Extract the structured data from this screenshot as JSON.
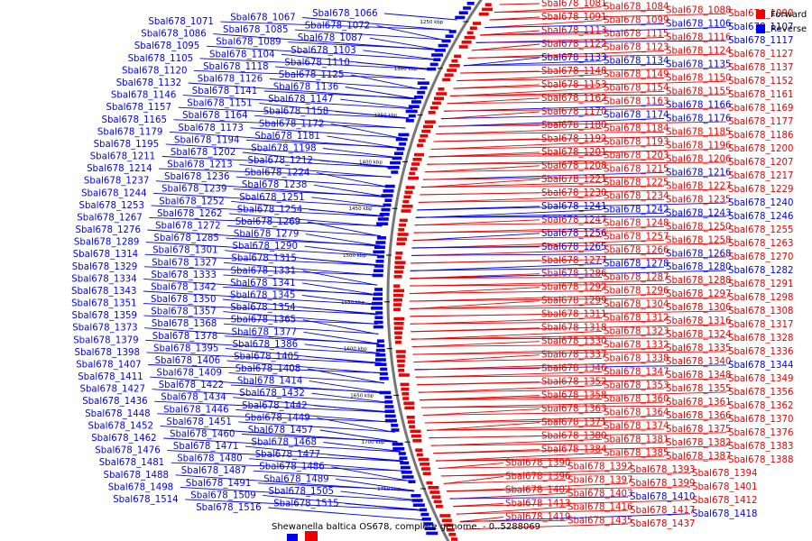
{
  "caption": "Shewanella baltica OS678, complete genome. - 0..5288069",
  "legend": [
    {
      "label": "Forward",
      "color": "#ee0000"
    },
    {
      "label": "Reverse",
      "color": "#0000ee"
    }
  ],
  "colors": {
    "forward": "#ee0000",
    "reverse": "#0000ee",
    "backbone": "#777777"
  },
  "ticks": [
    "1250 kbp",
    "1300 kbp",
    "1350 kbp",
    "1400 kbp",
    "1450 kbp",
    "1500 kbp",
    "1550 kbp",
    "1600 kbp",
    "1650 kbp",
    "1700 kbp",
    "1750 kbp"
  ],
  "reverse_labels": [
    "Sbal678_1066",
    "Sbal678_1067",
    "Sbal678_1071",
    "Sbal678_1072",
    "Sbal678_1085",
    "Sbal678_1086",
    "Sbal678_1087",
    "Sbal678_1089",
    "Sbal678_1095",
    "Sbal678_1103",
    "Sbal678_1104",
    "Sbal678_1105",
    "Sbal678_1110",
    "Sbal678_1118",
    "Sbal678_1120",
    "Sbal678_1125",
    "Sbal678_1126",
    "Sbal678_1132",
    "Sbal678_1136",
    "Sbal678_1141",
    "Sbal678_1146",
    "Sbal678_1147",
    "Sbal678_1151",
    "Sbal678_1157",
    "Sbal678_1158",
    "Sbal678_1164",
    "Sbal678_1165",
    "Sbal678_1172",
    "Sbal678_1173",
    "Sbal678_1179",
    "Sbal678_1181",
    "Sbal678_1194",
    "Sbal678_1195",
    "Sbal678_1198",
    "Sbal678_1202",
    "Sbal678_1211",
    "Sbal678_1212",
    "Sbal678_1213",
    "Sbal678_1214",
    "Sbal678_1224",
    "Sbal678_1236",
    "Sbal678_1237",
    "Sbal678_1238",
    "Sbal678_1239",
    "Sbal678_1244",
    "Sbal678_1251",
    "Sbal678_1252",
    "Sbal678_1253",
    "Sbal678_1254",
    "Sbal678_1262",
    "Sbal678_1267",
    "Sbal678_1269",
    "Sbal678_1272",
    "Sbal678_1276",
    "Sbal678_1279",
    "Sbal678_1285",
    "Sbal678_1289",
    "Sbal678_1290",
    "Sbal678_1301",
    "Sbal678_1314",
    "Sbal678_1315",
    "Sbal678_1327",
    "Sbal678_1329",
    "Sbal678_1331",
    "Sbal678_1333",
    "Sbal678_1334",
    "Sbal678_1341",
    "Sbal678_1342",
    "Sbal678_1343",
    "Sbal678_1345",
    "Sbal678_1350",
    "Sbal678_1351",
    "Sbal678_1354",
    "Sbal678_1357",
    "Sbal678_1359",
    "Sbal678_1365",
    "Sbal678_1368",
    "Sbal678_1373",
    "Sbal678_1377",
    "Sbal678_1378",
    "Sbal678_1379",
    "Sbal678_1386",
    "Sbal678_1395",
    "Sbal678_1398",
    "Sbal678_1405",
    "Sbal678_1406",
    "Sbal678_1407",
    "Sbal678_1408",
    "Sbal678_1409",
    "Sbal678_1411",
    "Sbal678_1414",
    "Sbal678_1422",
    "Sbal678_1427",
    "Sbal678_1432",
    "Sbal678_1434",
    "Sbal678_1436",
    "Sbal678_1442",
    "Sbal678_1446",
    "Sbal678_1448",
    "Sbal678_1449",
    "Sbal678_1451",
    "Sbal678_1452",
    "Sbal678_1457",
    "Sbal678_1460",
    "Sbal678_1462",
    "Sbal678_1468",
    "Sbal678_1471",
    "Sbal678_1476",
    "Sbal678_1477",
    "Sbal678_1480",
    "Sbal678_1481",
    "Sbal678_1486",
    "Sbal678_1487",
    "Sbal678_1488",
    "Sbal678_1489",
    "Sbal678_1491",
    "Sbal678_1498",
    "Sbal678_1505",
    "Sbal678_1509",
    "Sbal678_1514",
    "Sbal678_1515",
    "Sbal678_1516"
  ],
  "right_labels": [
    {
      "t": "Sbal678_1081",
      "s": "f"
    },
    {
      "t": "Sbal678_1084",
      "s": "f"
    },
    {
      "t": "Sbal678_1088",
      "s": "f"
    },
    {
      "t": "Sbal678_1090",
      "s": "f"
    },
    {
      "t": "Sbal678_1091",
      "s": "f"
    },
    {
      "t": "Sbal678_1099",
      "s": "f"
    },
    {
      "t": "Sbal678_1106",
      "s": "r"
    },
    {
      "t": "Sbal678_1107",
      "s": "r"
    },
    {
      "t": "Sbal678_1113",
      "s": "f"
    },
    {
      "t": "Sbal678_1115",
      "s": "f"
    },
    {
      "t": "Sbal678_1116",
      "s": "f"
    },
    {
      "t": "Sbal678_1117",
      "s": "r"
    },
    {
      "t": "Sbal678_1122",
      "s": "f"
    },
    {
      "t": "Sbal678_1123",
      "s": "f"
    },
    {
      "t": "Sbal678_1124",
      "s": "f"
    },
    {
      "t": "Sbal678_1127",
      "s": "f"
    },
    {
      "t": "Sbal678_1133",
      "s": "r"
    },
    {
      "t": "Sbal678_1134",
      "s": "r"
    },
    {
      "t": "Sbal678_1135",
      "s": "r"
    },
    {
      "t": "Sbal678_1137",
      "s": "f"
    },
    {
      "t": "Sbal678_1148",
      "s": "f"
    },
    {
      "t": "Sbal678_1149",
      "s": "f"
    },
    {
      "t": "Sbal678_1150",
      "s": "f"
    },
    {
      "t": "Sbal678_1152",
      "s": "f"
    },
    {
      "t": "Sbal678_1153",
      "s": "f"
    },
    {
      "t": "Sbal678_1154",
      "s": "f"
    },
    {
      "t": "Sbal678_1155",
      "s": "f"
    },
    {
      "t": "Sbal678_1161",
      "s": "f"
    },
    {
      "t": "Sbal678_1162",
      "s": "f"
    },
    {
      "t": "Sbal678_1163",
      "s": "f"
    },
    {
      "t": "Sbal678_1166",
      "s": "r"
    },
    {
      "t": "Sbal678_1169",
      "s": "f"
    },
    {
      "t": "Sbal678_1170",
      "s": "f"
    },
    {
      "t": "Sbal678_1174",
      "s": "r"
    },
    {
      "t": "Sbal678_1176",
      "s": "r"
    },
    {
      "t": "Sbal678_1177",
      "s": "f"
    },
    {
      "t": "Sbal678_1180",
      "s": "f"
    },
    {
      "t": "Sbal678_1184",
      "s": "f"
    },
    {
      "t": "Sbal678_1185",
      "s": "f"
    },
    {
      "t": "Sbal678_1186",
      "s": "f"
    },
    {
      "t": "Sbal678_1192",
      "s": "f"
    },
    {
      "t": "Sbal678_1193",
      "s": "f"
    },
    {
      "t": "Sbal678_1196",
      "s": "f"
    },
    {
      "t": "Sbal678_1200",
      "s": "f"
    },
    {
      "t": "Sbal678_1201",
      "s": "f"
    },
    {
      "t": "Sbal678_1203",
      "s": "f"
    },
    {
      "t": "Sbal678_1206",
      "s": "f"
    },
    {
      "t": "Sbal678_1207",
      "s": "f"
    },
    {
      "t": "Sbal678_1208",
      "s": "f"
    },
    {
      "t": "Sbal678_1215",
      "s": "f"
    },
    {
      "t": "Sbal678_1216",
      "s": "r"
    },
    {
      "t": "Sbal678_1217",
      "s": "f"
    },
    {
      "t": "Sbal678_1221",
      "s": "f"
    },
    {
      "t": "Sbal678_1225",
      "s": "f"
    },
    {
      "t": "Sbal678_1227",
      "s": "f"
    },
    {
      "t": "Sbal678_1229",
      "s": "f"
    },
    {
      "t": "Sbal678_1230",
      "s": "f"
    },
    {
      "t": "Sbal678_1234",
      "s": "f"
    },
    {
      "t": "Sbal678_1235",
      "s": "f"
    },
    {
      "t": "Sbal678_1240",
      "s": "r"
    },
    {
      "t": "Sbal678_1241",
      "s": "r"
    },
    {
      "t": "Sbal678_1242",
      "s": "r"
    },
    {
      "t": "Sbal678_1243",
      "s": "r"
    },
    {
      "t": "Sbal678_1246",
      "s": "r"
    },
    {
      "t": "Sbal678_1247",
      "s": "f"
    },
    {
      "t": "Sbal678_1248",
      "s": "f"
    },
    {
      "t": "Sbal678_1250",
      "s": "f"
    },
    {
      "t": "Sbal678_1255",
      "s": "f"
    },
    {
      "t": "Sbal678_1256",
      "s": "r"
    },
    {
      "t": "Sbal678_1257",
      "s": "f"
    },
    {
      "t": "Sbal678_1258",
      "s": "f"
    },
    {
      "t": "Sbal678_1263",
      "s": "f"
    },
    {
      "t": "Sbal678_1265",
      "s": "r"
    },
    {
      "t": "Sbal678_1266",
      "s": "f"
    },
    {
      "t": "Sbal678_1268",
      "s": "r"
    },
    {
      "t": "Sbal678_1270",
      "s": "f"
    },
    {
      "t": "Sbal678_1277",
      "s": "f"
    },
    {
      "t": "Sbal678_1278",
      "s": "r"
    },
    {
      "t": "Sbal678_1280",
      "s": "r"
    },
    {
      "t": "Sbal678_1282",
      "s": "r"
    },
    {
      "t": "Sbal678_1286",
      "s": "f"
    },
    {
      "t": "Sbal678_1287",
      "s": "f"
    },
    {
      "t": "Sbal678_1288",
      "s": "f"
    },
    {
      "t": "Sbal678_1291",
      "s": "f"
    },
    {
      "t": "Sbal678_1292",
      "s": "f"
    },
    {
      "t": "Sbal678_1296",
      "s": "f"
    },
    {
      "t": "Sbal678_1297",
      "s": "f"
    },
    {
      "t": "Sbal678_1298",
      "s": "f"
    },
    {
      "t": "Sbal678_1299",
      "s": "f"
    },
    {
      "t": "Sbal678_1304",
      "s": "f"
    },
    {
      "t": "Sbal678_1306",
      "s": "f"
    },
    {
      "t": "Sbal678_1308",
      "s": "f"
    },
    {
      "t": "Sbal678_1311",
      "s": "f"
    },
    {
      "t": "Sbal678_1312",
      "s": "f"
    },
    {
      "t": "Sbal678_1316",
      "s": "f"
    },
    {
      "t": "Sbal678_1317",
      "s": "f"
    },
    {
      "t": "Sbal678_1318",
      "s": "f"
    },
    {
      "t": "Sbal678_1323",
      "s": "f"
    },
    {
      "t": "Sbal678_1324",
      "s": "f"
    },
    {
      "t": "Sbal678_1328",
      "s": "f"
    },
    {
      "t": "Sbal678_1330",
      "s": "f"
    },
    {
      "t": "Sbal678_1332",
      "s": "f"
    },
    {
      "t": "Sbal678_1335",
      "s": "f"
    },
    {
      "t": "Sbal678_1336",
      "s": "f"
    },
    {
      "t": "Sbal678_1337",
      "s": "f"
    },
    {
      "t": "Sbal678_1338",
      "s": "f"
    },
    {
      "t": "Sbal678_1340",
      "s": "f"
    },
    {
      "t": "Sbal678_1344",
      "s": "r"
    },
    {
      "t": "Sbal678_1346",
      "s": "f"
    },
    {
      "t": "Sbal678_1347",
      "s": "f"
    },
    {
      "t": "Sbal678_1348",
      "s": "f"
    },
    {
      "t": "Sbal678_1349",
      "s": "f"
    },
    {
      "t": "Sbal678_1352",
      "s": "f"
    },
    {
      "t": "Sbal678_1353",
      "s": "f"
    },
    {
      "t": "Sbal678_1355",
      "s": "f"
    },
    {
      "t": "Sbal678_1356",
      "s": "f"
    },
    {
      "t": "Sbal678_1358",
      "s": "f"
    },
    {
      "t": "Sbal678_1360",
      "s": "f"
    },
    {
      "t": "Sbal678_1361",
      "s": "f"
    },
    {
      "t": "Sbal678_1362",
      "s": "f"
    },
    {
      "t": "Sbal678_1363",
      "s": "f"
    },
    {
      "t": "Sbal678_1364",
      "s": "f"
    },
    {
      "t": "Sbal678_1366",
      "s": "f"
    },
    {
      "t": "Sbal678_1370",
      "s": "f"
    },
    {
      "t": "Sbal678_1371",
      "s": "f"
    },
    {
      "t": "Sbal678_1374",
      "s": "f"
    },
    {
      "t": "Sbal678_1375",
      "s": "f"
    },
    {
      "t": "Sbal678_1376",
      "s": "f"
    },
    {
      "t": "Sbal678_1380",
      "s": "f"
    },
    {
      "t": "Sbal678_1381",
      "s": "f"
    },
    {
      "t": "Sbal678_1382",
      "s": "f"
    },
    {
      "t": "Sbal678_1383",
      "s": "f"
    },
    {
      "t": "Sbal678_1384",
      "s": "f"
    },
    {
      "t": "Sbal678_1385",
      "s": "f"
    },
    {
      "t": "Sbal678_1387",
      "s": "f"
    },
    {
      "t": "Sbal678_1388",
      "s": "f"
    },
    {
      "t": "Sbal678_1390",
      "s": "f"
    },
    {
      "t": "Sbal678_1392",
      "s": "f"
    },
    {
      "t": "Sbal678_1393",
      "s": "f"
    },
    {
      "t": "Sbal678_1394",
      "s": "f"
    },
    {
      "t": "Sbal678_1396",
      "s": "f"
    },
    {
      "t": "Sbal678_1397",
      "s": "f"
    },
    {
      "t": "Sbal678_1399",
      "s": "f"
    },
    {
      "t": "Sbal678_1401",
      "s": "f"
    },
    {
      "t": "Sbal678_1402",
      "s": "f"
    },
    {
      "t": "Sbal678_1403",
      "s": "f"
    },
    {
      "t": "Sbal678_1410",
      "s": "r"
    },
    {
      "t": "Sbal678_1412",
      "s": "f"
    },
    {
      "t": "Sbal678_1413",
      "s": "f"
    },
    {
      "t": "Sbal678_1416",
      "s": "f"
    },
    {
      "t": "Sbal678_1417",
      "s": "f"
    },
    {
      "t": "Sbal678_1418",
      "s": "r"
    },
    {
      "t": "Sbal678_1419",
      "s": "f"
    },
    {
      "t": "Sbal678_1435",
      "s": "f"
    },
    {
      "t": "Sbal678_1437",
      "s": "f"
    }
  ]
}
